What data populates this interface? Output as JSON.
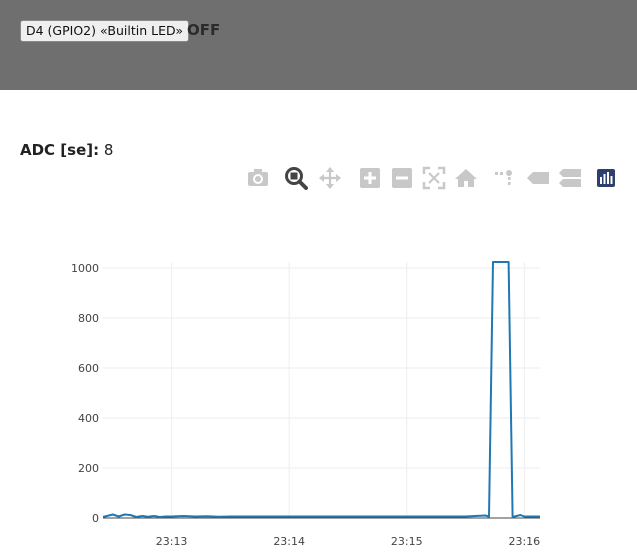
{
  "header": {
    "led_button_label": "D4 (GPIO2) «Builtin LED»",
    "led_state": "OFF"
  },
  "sensor": {
    "label": "ADC [se]:",
    "value": "8"
  },
  "modebar": [
    {
      "name": "camera-icon",
      "active": false
    },
    {
      "name": "zoom-icon",
      "active": true
    },
    {
      "name": "pan-icon",
      "active": false
    },
    {
      "name": "zoom-in-icon",
      "active": false
    },
    {
      "name": "zoom-out-icon",
      "active": false
    },
    {
      "name": "autoscale-icon",
      "active": false
    },
    {
      "name": "home-icon",
      "active": false
    },
    {
      "name": "spikelines-icon",
      "active": false
    },
    {
      "name": "hover-closest-icon",
      "active": false
    },
    {
      "name": "hover-compare-icon",
      "active": false
    },
    {
      "name": "plotly-logo-icon",
      "active": false
    }
  ],
  "colors": {
    "line": "#1f77b4",
    "grid": "#eeeeee",
    "icon": "#c8c8c8",
    "icon_active": "#444444"
  },
  "chart_data": {
    "type": "line",
    "title": "",
    "xlabel": "",
    "ylabel": "",
    "x_ticks": [
      "23:13",
      "23:14",
      "23:15",
      "23:16"
    ],
    "y_ticks": [
      "0",
      "200",
      "400",
      "600",
      "800",
      "1000"
    ],
    "ylim": [
      0,
      1024
    ],
    "xlim": [
      "23:12:25",
      "23:16:08"
    ],
    "grid": true,
    "series": [
      {
        "x": [
          "23:12:25",
          "23:12:27",
          "23:12:30",
          "23:12:33",
          "23:12:36",
          "23:12:39",
          "23:12:42",
          "23:12:45",
          "23:12:48",
          "23:12:51",
          "23:12:54",
          "23:12:57",
          "23:13:00",
          "23:13:06",
          "23:13:12",
          "23:13:18",
          "23:13:24",
          "23:13:30",
          "23:13:40",
          "23:14:00",
          "23:14:30",
          "23:15:00",
          "23:15:30",
          "23:15:40",
          "23:15:42",
          "23:15:44",
          "23:15:46",
          "23:15:52",
          "23:15:54",
          "23:15:56",
          "23:15:58",
          "23:16:00",
          "23:16:04",
          "23:16:08"
        ],
        "y": [
          4,
          8,
          14,
          6,
          14,
          12,
          4,
          8,
          5,
          8,
          4,
          6,
          6,
          8,
          6,
          7,
          5,
          6,
          6,
          6,
          6,
          6,
          6,
          10,
          6,
          1024,
          1024,
          1024,
          4,
          8,
          12,
          6,
          6,
          6
        ]
      }
    ]
  }
}
